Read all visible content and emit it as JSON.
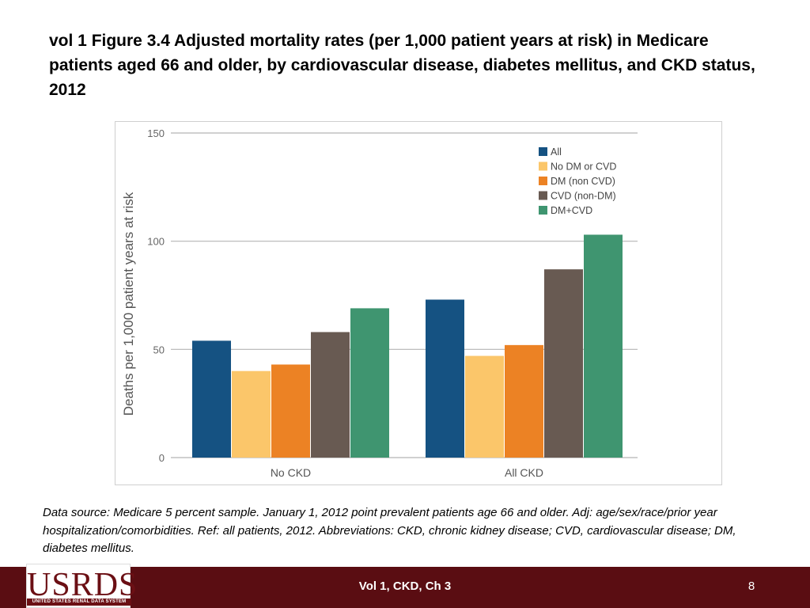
{
  "slide": {
    "title": "vol 1 Figure 3.4  Adjusted mortality rates (per 1,000 patient years at risk) in Medicare patients aged 66 and older, by cardiovascular disease, diabetes mellitus, and CKD status, 2012",
    "footnote": "Data source: Medicare 5 percent sample. January 1, 2012 point prevalent patients age 66 and older. Adj: age/sex/race/prior year hospitalization/comorbidities. Ref: all patients, 2012. Abbreviations: CKD, chronic kidney disease; CVD, cardiovascular disease; DM, diabetes mellitus.",
    "footer_center": "Vol 1, CKD, Ch 3",
    "page_number": "8",
    "logo_text": "USRDS",
    "logo_subtext": "UNITED STATES RENAL DATA SYSTEM",
    "logo_color": "#6b0f14",
    "footer_color": "#5a0d12"
  },
  "chart_data": {
    "type": "bar",
    "title": "",
    "xlabel": "",
    "ylabel": "Deaths per 1,000 patient years at risk",
    "ylim": [
      0,
      150
    ],
    "yticks": [
      0,
      50,
      100,
      150
    ],
    "grid": true,
    "legend_position": "top-right",
    "categories": [
      "No CKD",
      "All CKD"
    ],
    "series": [
      {
        "name": "All",
        "color": "#155282",
        "values": [
          54,
          73
        ]
      },
      {
        "name": "No DM or CVD",
        "color": "#fbc66a",
        "values": [
          40,
          47
        ]
      },
      {
        "name": "DM (non CVD)",
        "color": "#ec8224",
        "values": [
          43,
          52
        ]
      },
      {
        "name": "CVD (non-DM)",
        "color": "#685a52",
        "values": [
          58,
          87
        ]
      },
      {
        "name": "DM+CVD",
        "color": "#3f9570",
        "values": [
          69,
          103
        ]
      }
    ]
  }
}
